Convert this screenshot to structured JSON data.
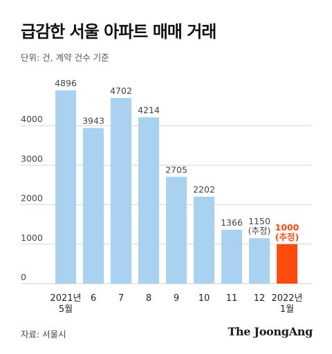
{
  "title": "급감한 서울 아파트 매매 거래",
  "unit_label": "단위: 건, 계약 건수 기준",
  "source": "자료: 서울시",
  "brand": "The JoongAng",
  "colors": {
    "bar": "#a8d2f0",
    "highlight_bar": "#ff4a10",
    "highlight_text": "#ff4a10",
    "grid": "#d6d6d6",
    "text": "#444444"
  },
  "chart_data": {
    "type": "bar",
    "categories": [
      [
        "2021년",
        "5월"
      ],
      [
        "6"
      ],
      [
        "7"
      ],
      [
        "8"
      ],
      [
        "9"
      ],
      [
        "10"
      ],
      [
        "11"
      ],
      [
        "12"
      ],
      [
        "2022년",
        "1월"
      ]
    ],
    "values": [
      4896,
      3943,
      4702,
      4214,
      2705,
      2202,
      1366,
      1150,
      1000
    ],
    "value_labels": [
      [
        "4896"
      ],
      [
        "3943"
      ],
      [
        "4702"
      ],
      [
        "4214"
      ],
      [
        "2705"
      ],
      [
        "2202"
      ],
      [
        "1366"
      ],
      [
        "1150",
        "(추정)"
      ],
      [
        "1000",
        "(추정)"
      ]
    ],
    "highlight_index": 8,
    "y_ticks": [
      0,
      1000,
      2000,
      3000,
      4000
    ],
    "ylim": [
      0,
      5000
    ],
    "grid": true
  }
}
